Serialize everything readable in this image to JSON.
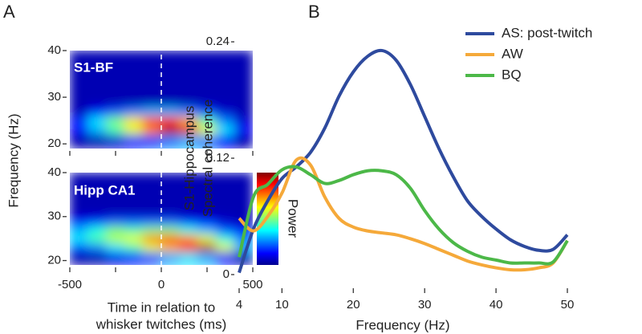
{
  "chart_data": [
    {
      "type": "heatmap",
      "panel_label": "A",
      "title": "S1-BF",
      "ylabel": "Frequency (Hz)",
      "colorbar_label": "Power",
      "xbins": [
        -500,
        -400,
        -300,
        -200,
        -100,
        0,
        100,
        200,
        300,
        400,
        500
      ],
      "ybins": [
        20,
        22,
        24,
        26,
        28,
        30,
        32,
        34,
        36,
        38,
        40
      ],
      "xlim": [
        -500,
        500
      ],
      "ylim": [
        19,
        40
      ],
      "yticks": [
        20,
        30,
        40
      ],
      "xminorticks": [
        -500,
        -250,
        0,
        250,
        500
      ],
      "z": [
        [
          0.05,
          0.05,
          0.08,
          0.15,
          0.2,
          0.25,
          0.3,
          0.25,
          0.12,
          0.05
        ],
        [
          0.12,
          0.3,
          0.45,
          0.6,
          0.75,
          0.95,
          0.9,
          0.6,
          0.35,
          0.12
        ],
        [
          0.15,
          0.35,
          0.5,
          0.65,
          0.8,
          0.85,
          0.7,
          0.45,
          0.25,
          0.08
        ],
        [
          0.05,
          0.12,
          0.2,
          0.25,
          0.3,
          0.3,
          0.25,
          0.18,
          0.08,
          0.05
        ],
        [
          0.05,
          0.05,
          0.05,
          0.05,
          0.05,
          0.05,
          0.05,
          0.05,
          0.05,
          0.05
        ],
        [
          0.05,
          0.05,
          0.05,
          0.05,
          0.05,
          0.05,
          0.05,
          0.05,
          0.05,
          0.05
        ],
        [
          0.05,
          0.05,
          0.05,
          0.05,
          0.05,
          0.05,
          0.05,
          0.05,
          0.05,
          0.05
        ],
        [
          0.05,
          0.05,
          0.05,
          0.05,
          0.05,
          0.05,
          0.05,
          0.05,
          0.05,
          0.05
        ],
        [
          0.05,
          0.05,
          0.05,
          0.05,
          0.05,
          0.05,
          0.05,
          0.05,
          0.05,
          0.05
        ],
        [
          0.05,
          0.05,
          0.05,
          0.05,
          0.05,
          0.05,
          0.05,
          0.05,
          0.05,
          0.05
        ]
      ]
    },
    {
      "type": "heatmap",
      "title": "Hipp CA1",
      "xlabel": [
        "Time in relation to",
        "whisker twitches (ms)"
      ],
      "xbins": [
        -500,
        -400,
        -300,
        -200,
        -100,
        0,
        100,
        200,
        300,
        400,
        500
      ],
      "ybins": [
        20,
        22,
        24,
        26,
        28,
        30,
        32,
        34,
        36,
        38,
        40
      ],
      "xlim": [
        -500,
        500
      ],
      "ylim": [
        19,
        40
      ],
      "yticks": [
        20,
        30,
        40
      ],
      "xticks": [
        -500,
        0,
        500
      ],
      "xminorticks": [
        -250,
        250
      ],
      "z": [
        [
          0.05,
          0.05,
          0.1,
          0.15,
          0.2,
          0.3,
          0.35,
          0.3,
          0.15,
          0.05
        ],
        [
          0.2,
          0.25,
          0.35,
          0.45,
          0.6,
          0.7,
          0.85,
          0.95,
          0.6,
          0.3
        ],
        [
          0.35,
          0.45,
          0.55,
          0.6,
          0.75,
          0.8,
          0.75,
          0.6,
          0.4,
          0.25
        ],
        [
          0.3,
          0.4,
          0.5,
          0.45,
          0.5,
          0.5,
          0.4,
          0.3,
          0.2,
          0.15
        ],
        [
          0.12,
          0.15,
          0.2,
          0.2,
          0.2,
          0.2,
          0.15,
          0.12,
          0.08,
          0.05
        ],
        [
          0.05,
          0.05,
          0.05,
          0.05,
          0.05,
          0.05,
          0.05,
          0.05,
          0.05,
          0.05
        ],
        [
          0.05,
          0.05,
          0.05,
          0.05,
          0.05,
          0.05,
          0.05,
          0.05,
          0.05,
          0.05
        ],
        [
          0.05,
          0.05,
          0.05,
          0.05,
          0.05,
          0.05,
          0.05,
          0.05,
          0.05,
          0.05
        ],
        [
          0.05,
          0.05,
          0.05,
          0.05,
          0.05,
          0.05,
          0.05,
          0.05,
          0.05,
          0.05
        ],
        [
          0.05,
          0.05,
          0.05,
          0.05,
          0.05,
          0.05,
          0.05,
          0.05,
          0.05,
          0.05
        ]
      ]
    },
    {
      "type": "line",
      "panel_label": "B",
      "xlabel": "Frequency (Hz)",
      "ylabel": [
        "S1-Hippocampus",
        "Spectral coherence"
      ],
      "x": [
        4,
        6,
        8,
        10,
        12,
        14,
        16,
        18,
        20,
        22,
        24,
        26,
        28,
        30,
        32,
        34,
        36,
        38,
        40,
        42,
        44,
        46,
        48,
        50
      ],
      "xlim": [
        4,
        50
      ],
      "ylim": [
        0,
        0.25
      ],
      "xticks": [
        4,
        10,
        20,
        30,
        40,
        50
      ],
      "yticks": [
        0,
        0.12,
        0.24
      ],
      "series": [
        {
          "name": "AS: post-twitch",
          "color": "#2e4a9e",
          "values": [
            0.002,
            0.047,
            0.076,
            0.099,
            0.111,
            0.126,
            0.151,
            0.184,
            0.209,
            0.225,
            0.231,
            0.221,
            0.196,
            0.163,
            0.13,
            0.101,
            0.076,
            0.06,
            0.047,
            0.036,
            0.029,
            0.025,
            0.026,
            0.041
          ]
        },
        {
          "name": "AW",
          "color": "#f5a93a",
          "values": [
            0.058,
            0.045,
            0.06,
            0.084,
            0.118,
            0.113,
            0.08,
            0.058,
            0.049,
            0.045,
            0.043,
            0.041,
            0.037,
            0.032,
            0.026,
            0.02,
            0.014,
            0.01,
            0.007,
            0.005,
            0.005,
            0.007,
            0.012,
            0.035
          ]
        },
        {
          "name": "BQ",
          "color": "#4cb848",
          "values": [
            0.018,
            0.08,
            0.093,
            0.108,
            0.111,
            0.103,
            0.094,
            0.097,
            0.103,
            0.107,
            0.107,
            0.103,
            0.089,
            0.066,
            0.047,
            0.033,
            0.024,
            0.018,
            0.015,
            0.012,
            0.012,
            0.012,
            0.013,
            0.035
          ]
        }
      ]
    }
  ]
}
